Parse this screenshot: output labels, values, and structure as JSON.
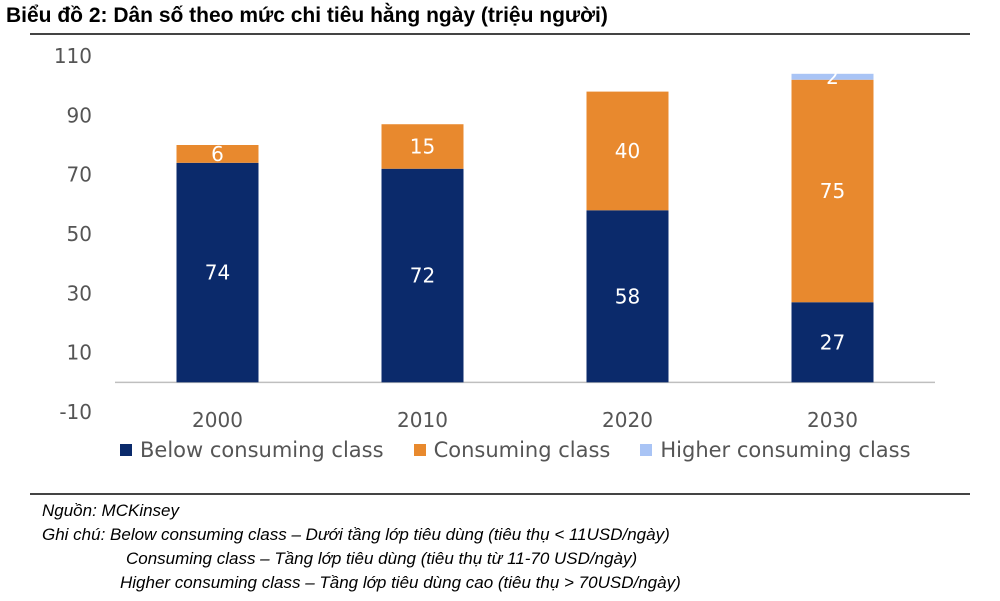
{
  "title": "Biểu đồ 2: Dân số theo mức chi tiêu hằng ngày (triệu người)",
  "chart_data": {
    "type": "bar",
    "stacked": true,
    "categories": [
      "2000",
      "2010",
      "2020",
      "2030"
    ],
    "series": [
      {
        "name": "Below consuming class",
        "values": [
          74,
          72,
          58,
          27
        ],
        "color": "#0b2a6b",
        "label_color": "#ffffff"
      },
      {
        "name": "Consuming class",
        "values": [
          6,
          15,
          40,
          75
        ],
        "color": "#e8892e",
        "label_color": "#ffffff"
      },
      {
        "name": "Higher consuming class",
        "values": [
          null,
          null,
          null,
          2
        ],
        "color": "#a9c4f5",
        "label_color": "#ffffff"
      }
    ],
    "ylim": [
      -10,
      110
    ],
    "yticks": [
      -10,
      10,
      30,
      50,
      70,
      90,
      110
    ],
    "grid": false,
    "legend_position": "bottom"
  },
  "notes": {
    "source": "Nguồn: MCKinsey",
    "line1": "Ghi chú: Below consuming class – Dưới tầng lớp tiêu dùng (tiêu thụ < 11USD/ngày)",
    "line2": "Consuming class – Tầng lớp tiêu dùng (tiêu thụ từ 11-70 USD/ngày)",
    "line3": "Higher consuming class – Tầng lớp tiêu dùng cao (tiêu thụ > 70USD/ngày)"
  }
}
